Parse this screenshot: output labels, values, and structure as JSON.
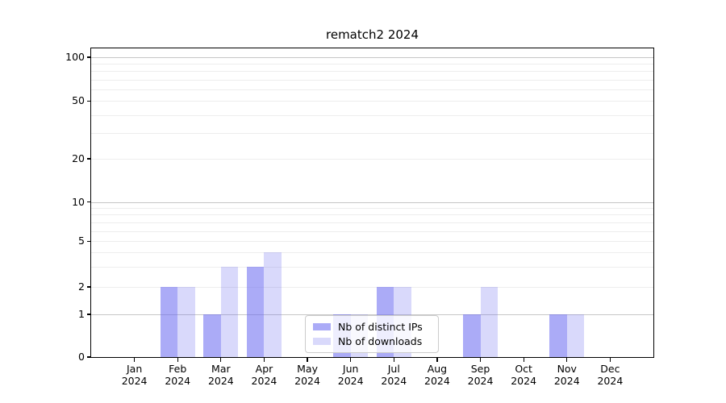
{
  "chart_data": {
    "type": "bar",
    "title": "rematch2 2024",
    "categories": [
      "Jan 2024",
      "Feb 2024",
      "Mar 2024",
      "Apr 2024",
      "May 2024",
      "Jun 2024",
      "Jul 2024",
      "Aug 2024",
      "Sep 2024",
      "Oct 2024",
      "Nov 2024",
      "Dec 2024"
    ],
    "series": [
      {
        "name": "Nb of distinct IPs",
        "color": "rgba(102,102,240,0.55)",
        "values": [
          0,
          2,
          1,
          3,
          0,
          1,
          2,
          0,
          1,
          0,
          1,
          0
        ]
      },
      {
        "name": "Nb of downloads",
        "color": "rgba(102,102,240,0.25)",
        "values": [
          0,
          2,
          3,
          4,
          0,
          1,
          2,
          0,
          2,
          0,
          1,
          0
        ]
      }
    ],
    "yscale": "symlog",
    "ytick_values": [
      100,
      50,
      20,
      10,
      5,
      2,
      1,
      0
    ],
    "ytick_labels": [
      "100",
      "50",
      "20",
      "10",
      "5",
      "2",
      "1",
      "0"
    ],
    "grid": true,
    "grid_major_values": [
      1,
      10,
      100
    ],
    "grid_minor_values": [
      2,
      3,
      4,
      5,
      6,
      7,
      8,
      9,
      20,
      30,
      40,
      50,
      60,
      70,
      80,
      90
    ],
    "legend_position": "lower center",
    "colors": {
      "grid_major": "#c6c6c6",
      "grid_minor": "#ededed",
      "spine": "#000000",
      "background": "#ffffff"
    }
  }
}
